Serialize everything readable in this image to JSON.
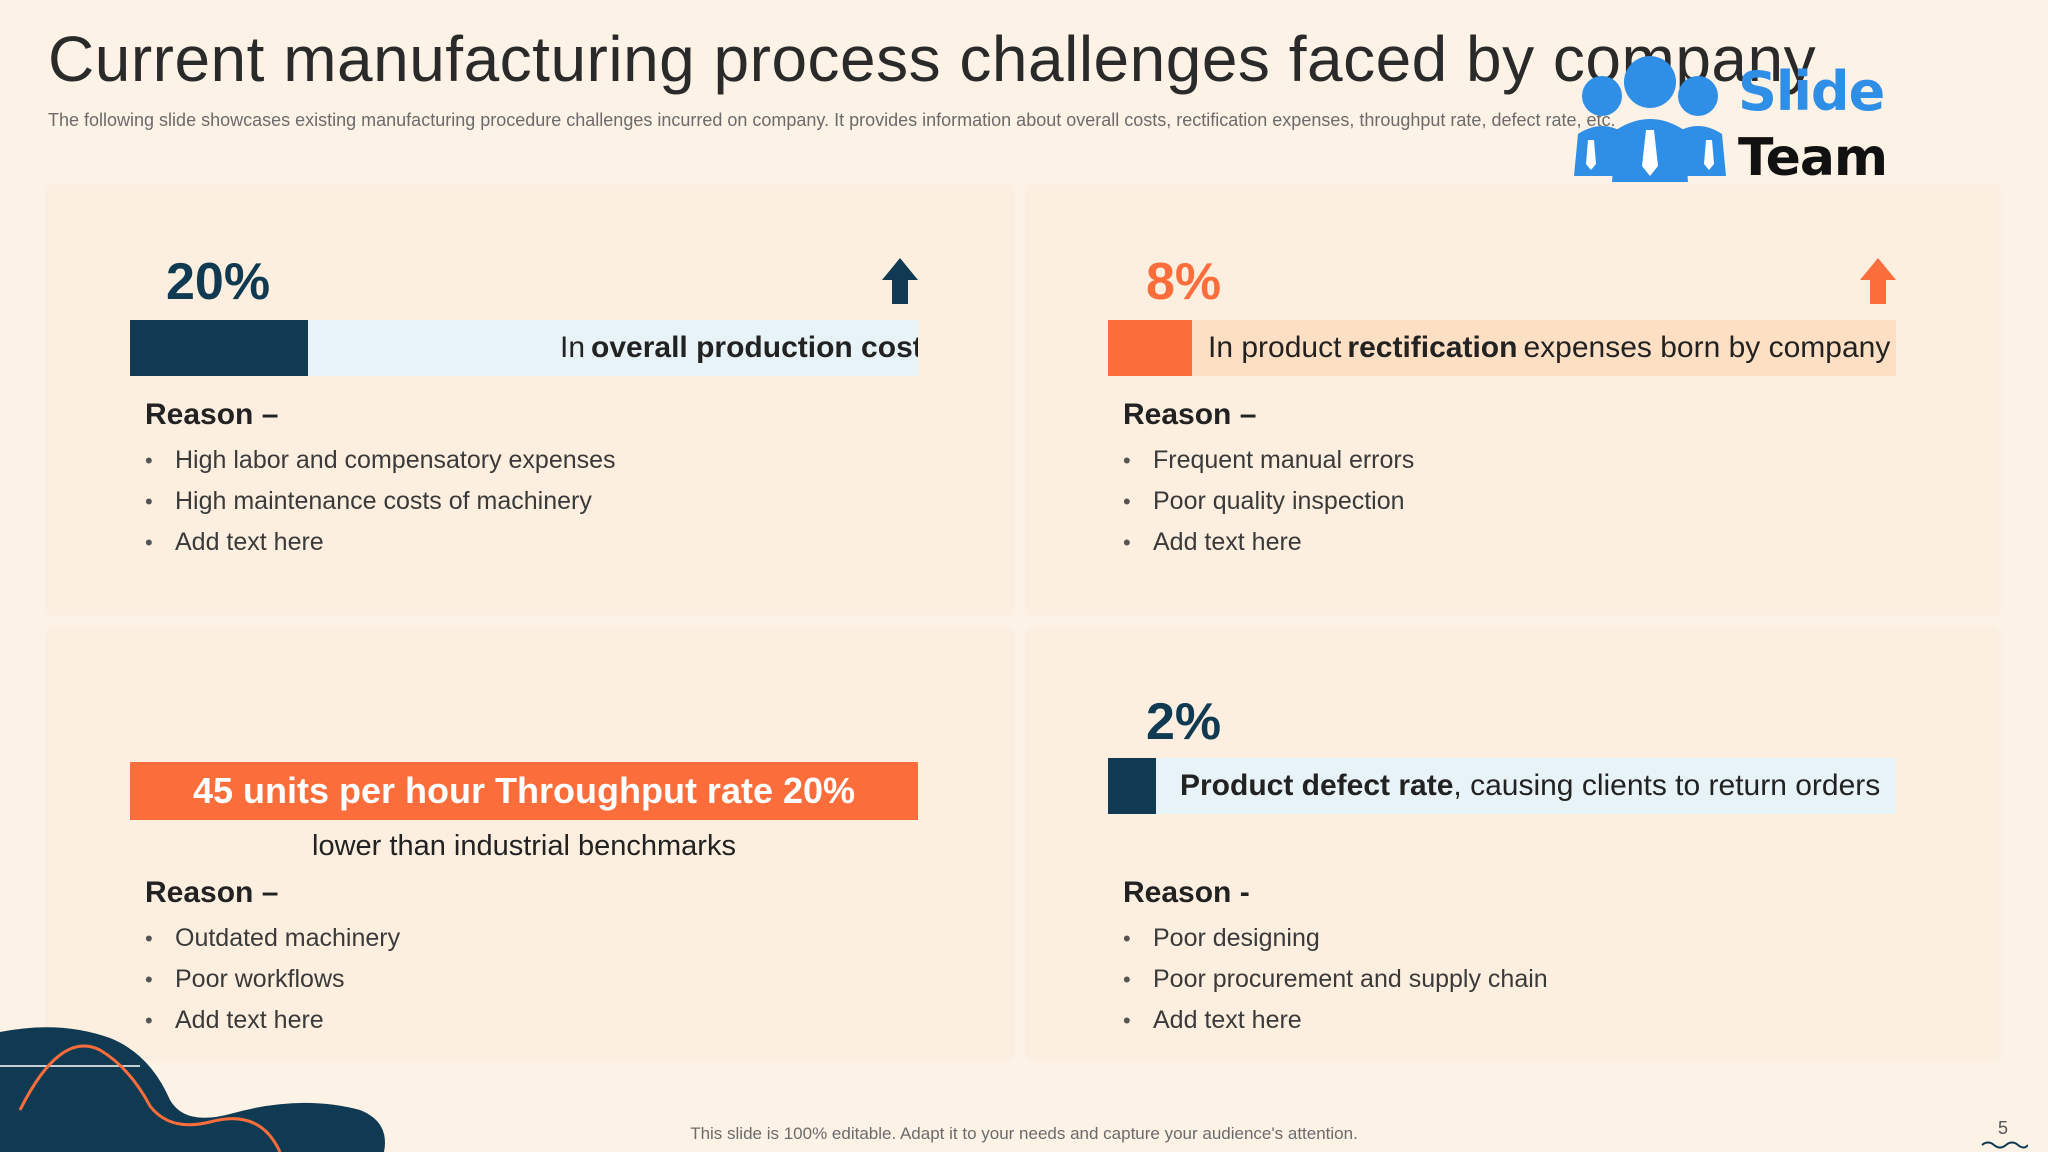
{
  "header": {
    "title": "Current manufacturing process challenges faced by company",
    "subtitle": "The following slide showcases existing manufacturing procedure challenges incurred on company. It provides information about overall costs, rectification expenses, throughput rate, defect rate, etc."
  },
  "logo": {
    "word1": "Slide",
    "word2": "Team",
    "color": "#2f8ee6"
  },
  "colors": {
    "navy": "#0f3a52",
    "orange": "#fc6d3c",
    "light_blue": "#e8f3f7",
    "peach": "#fde0c4",
    "background": "#fdf2e6"
  },
  "cards": {
    "c1": {
      "percent": "20%",
      "arrow_icon": "arrow-up-icon",
      "label_pre": "In",
      "label_bold": "overall production costs",
      "label_post": "",
      "reason_title": "Reason –",
      "reasons": [
        "High labor and compensatory expenses",
        "High maintenance costs of machinery",
        "Add text here"
      ]
    },
    "c2": {
      "percent": "8%",
      "arrow_icon": "arrow-up-icon",
      "label_pre": "In product",
      "label_bold": "rectification",
      "label_post": "expenses born by company",
      "reason_title": "Reason –",
      "reasons": [
        "Frequent manual errors",
        "Poor quality inspection",
        "Add text here"
      ]
    },
    "c3": {
      "banner": "45 units per hour Throughput rate 20%",
      "banner_sub": "lower than industrial benchmarks",
      "reason_title": "Reason –",
      "reasons": [
        "Outdated machinery",
        "Poor workflows",
        "Add text here"
      ]
    },
    "c4": {
      "percent": "2%",
      "label_bold": "Product defect rate",
      "label_post": ", causing clients to return orders",
      "reason_title": "Reason -",
      "reasons": [
        "Poor designing",
        "Poor procurement and supply chain",
        "Add text here"
      ]
    }
  },
  "footer": {
    "note": "This slide is 100% editable. Adapt it to your needs and capture your audience's attention.",
    "page_number": "5"
  }
}
